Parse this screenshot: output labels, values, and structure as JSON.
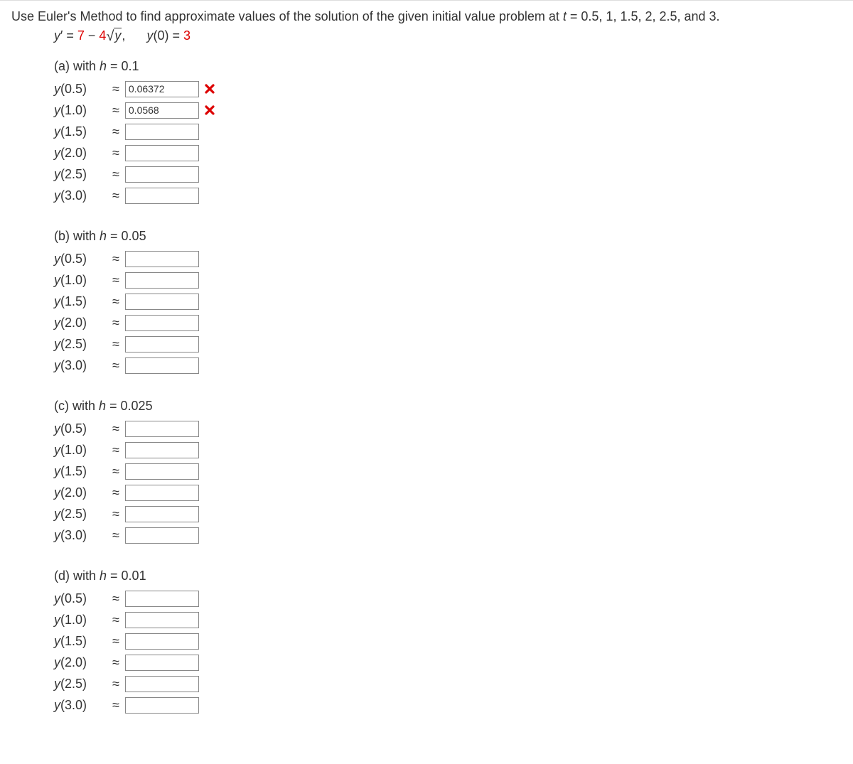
{
  "prompt": {
    "pre": "Use Euler's Method to find approximate values of the solution of the given initial value problem at ",
    "t": "t",
    "post": " = 0.5, 1, 1.5, 2, 2.5, and 3."
  },
  "equation": {
    "lhs_y": "y",
    "prime_eq": "′ = ",
    "coef1": "7",
    "minus": " − ",
    "coef2": "4",
    "radicand": "y",
    "comma": ",",
    "ic_y": "y",
    "ic_paren": "(0) = ",
    "ic_val": "3"
  },
  "approx_symbol": "≈",
  "sections": [
    {
      "id": "a",
      "header_pre": "(a) with ",
      "h": "h",
      "header_post": " = 0.1",
      "rows": [
        {
          "t": "0.5",
          "value": "0.06372",
          "feedback": "wrong"
        },
        {
          "t": "1.0",
          "value": "0.0568",
          "feedback": "wrong"
        },
        {
          "t": "1.5",
          "value": "",
          "feedback": "none"
        },
        {
          "t": "2.0",
          "value": "",
          "feedback": "none"
        },
        {
          "t": "2.5",
          "value": "",
          "feedback": "none"
        },
        {
          "t": "3.0",
          "value": "",
          "feedback": "none"
        }
      ]
    },
    {
      "id": "b",
      "header_pre": "(b) with ",
      "h": "h",
      "header_post": " = 0.05",
      "rows": [
        {
          "t": "0.5",
          "value": "",
          "feedback": "none"
        },
        {
          "t": "1.0",
          "value": "",
          "feedback": "none"
        },
        {
          "t": "1.5",
          "value": "",
          "feedback": "none"
        },
        {
          "t": "2.0",
          "value": "",
          "feedback": "none"
        },
        {
          "t": "2.5",
          "value": "",
          "feedback": "none"
        },
        {
          "t": "3.0",
          "value": "",
          "feedback": "none"
        }
      ]
    },
    {
      "id": "c",
      "header_pre": "(c) with ",
      "h": "h",
      "header_post": " = 0.025",
      "rows": [
        {
          "t": "0.5",
          "value": "",
          "feedback": "none"
        },
        {
          "t": "1.0",
          "value": "",
          "feedback": "none"
        },
        {
          "t": "1.5",
          "value": "",
          "feedback": "none"
        },
        {
          "t": "2.0",
          "value": "",
          "feedback": "none"
        },
        {
          "t": "2.5",
          "value": "",
          "feedback": "none"
        },
        {
          "t": "3.0",
          "value": "",
          "feedback": "none"
        }
      ]
    },
    {
      "id": "d",
      "header_pre": "(d) with ",
      "h": "h",
      "header_post": " = 0.01",
      "rows": [
        {
          "t": "0.5",
          "value": "",
          "feedback": "none"
        },
        {
          "t": "1.0",
          "value": "",
          "feedback": "none"
        },
        {
          "t": "1.5",
          "value": "",
          "feedback": "none"
        },
        {
          "t": "2.0",
          "value": "",
          "feedback": "none"
        },
        {
          "t": "2.5",
          "value": "",
          "feedback": "none"
        },
        {
          "t": "3.0",
          "value": "",
          "feedback": "none"
        }
      ]
    }
  ],
  "colors": {
    "wrong": "#dd0000",
    "text": "#333333",
    "input_border": "#888888"
  }
}
